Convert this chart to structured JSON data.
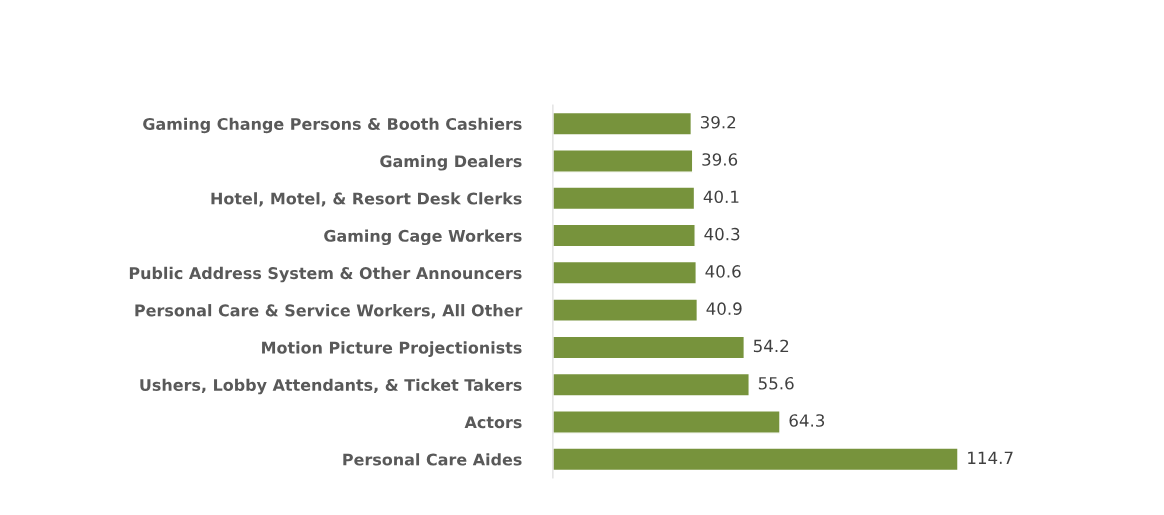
{
  "chart_data": {
    "type": "bar",
    "orientation": "horizontal",
    "categories": [
      "Gaming Change Persons & Booth Cashiers",
      "Gaming Dealers",
      "Hotel, Motel, & Resort Desk Clerks",
      "Gaming Cage Workers",
      "Public Address System & Other Announcers",
      "Personal Care & Service Workers, All Other",
      "Motion Picture Projectionists",
      "Ushers, Lobby Attendants, & Ticket Takers",
      "Actors",
      "Personal Care Aides"
    ],
    "values": [
      39.2,
      39.6,
      40.1,
      40.3,
      40.6,
      40.9,
      54.2,
      55.6,
      64.3,
      114.7
    ],
    "color": "#77933c",
    "data_labels": true,
    "grid": false,
    "legend": false
  }
}
